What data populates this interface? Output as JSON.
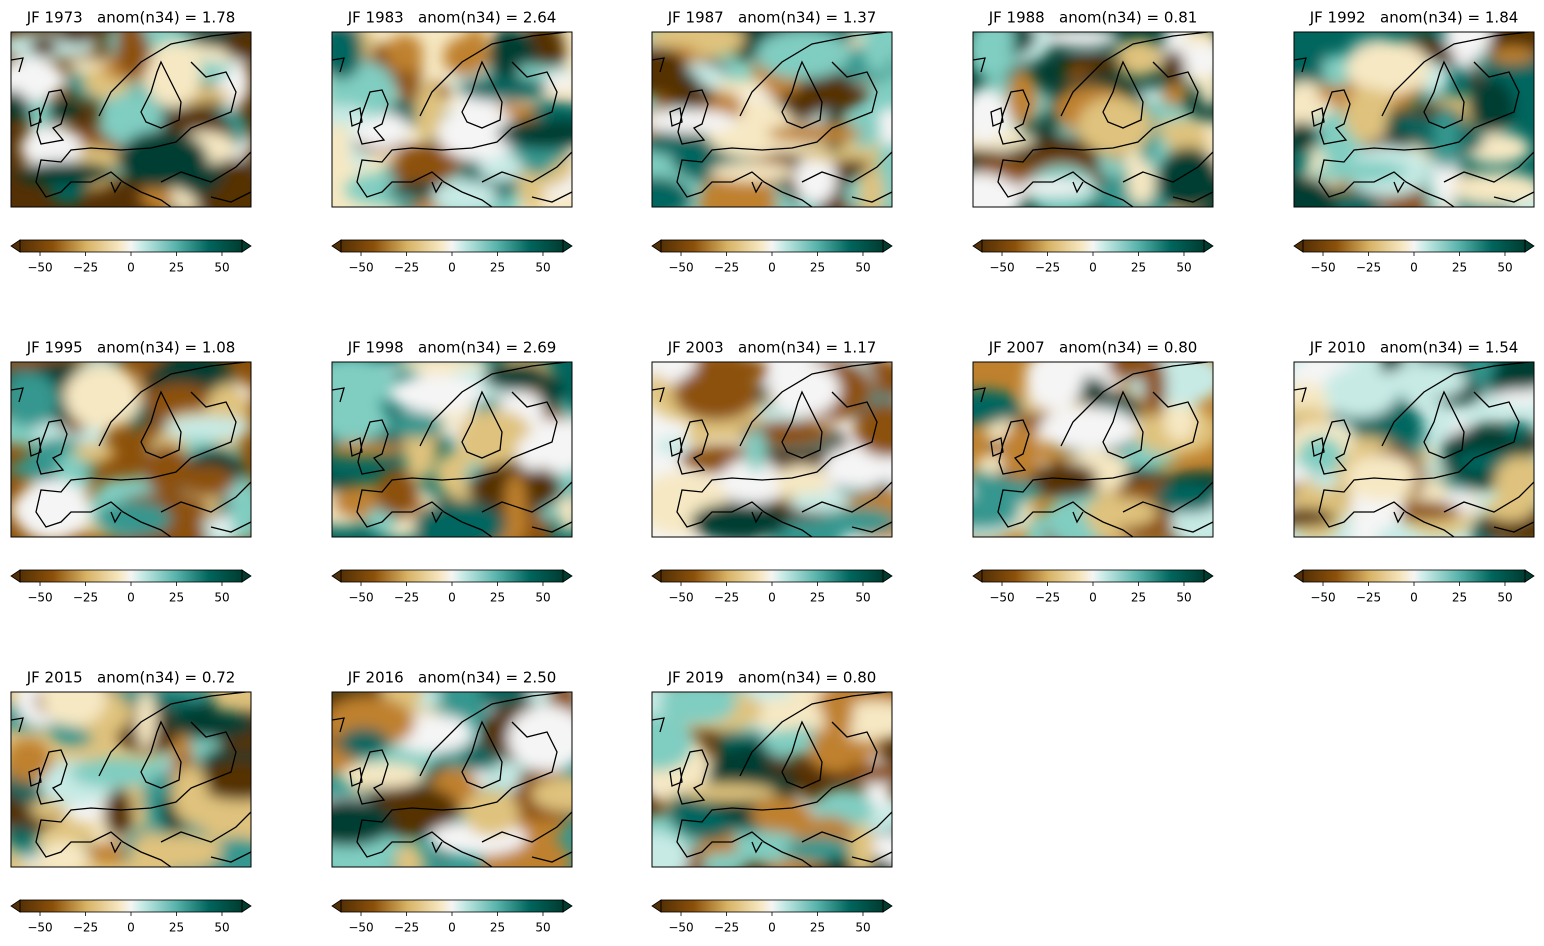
{
  "colorbar": {
    "lim": [
      -61,
      61
    ],
    "ticks": [
      {
        "value": -50,
        "label": "−50"
      },
      {
        "value": -25,
        "label": "−25"
      },
      0,
      25,
      50
    ]
  },
  "panels": [
    {
      "title": "JF 1973   anom(n34) = 1.78"
    },
    {
      "title": "JF 1983   anom(n34) = 2.64"
    },
    {
      "title": "JF 1987   anom(n34) = 1.37"
    },
    {
      "title": "JF 1988   anom(n34) = 0.81"
    },
    {
      "title": "JF 1992   anom(n34) = 1.84"
    },
    {
      "title": "JF 1995   anom(n34) = 1.08"
    },
    {
      "title": "JF 1998   anom(n34) = 2.69"
    },
    {
      "title": "JF 2003   anom(n34) = 1.17"
    },
    {
      "title": "JF 2007   anom(n34) = 0.80"
    },
    {
      "title": "JF 2010   anom(n34) = 1.54"
    },
    {
      "title": "JF 2015   anom(n34) = 0.72"
    },
    {
      "title": "JF 2016   anom(n34) = 2.50"
    },
    {
      "title": "JF 2019   anom(n34) = 0.80"
    }
  ]
}
